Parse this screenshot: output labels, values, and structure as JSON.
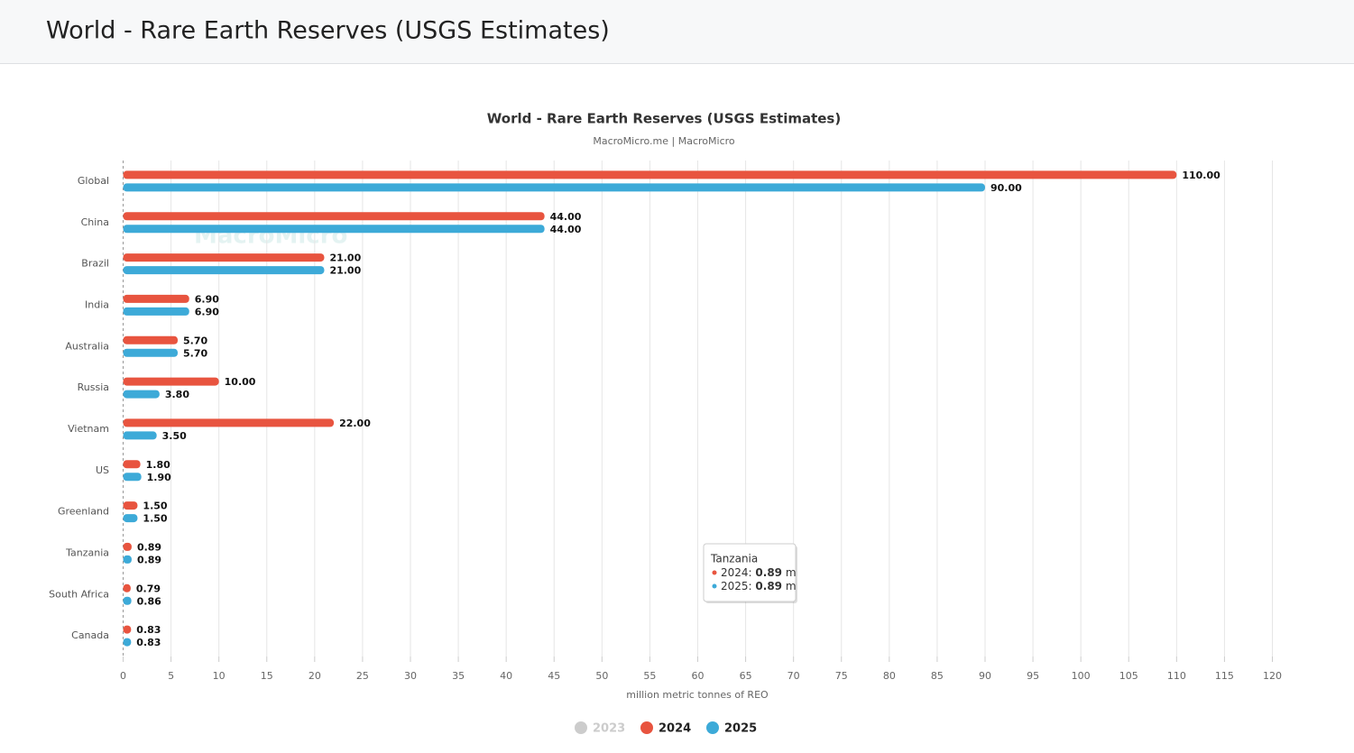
{
  "header": {
    "title": "World - Rare Earth Reserves (USGS Estimates)"
  },
  "chart_data": {
    "type": "bar",
    "orientation": "horizontal",
    "title": "World - Rare Earth Reserves (USGS Estimates)",
    "subtitle": "MacroMicro.me | MacroMicro",
    "watermark": "MacroMicro",
    "x_label": "million metric tonnes of REO",
    "categories": [
      "Global",
      "China",
      "Brazil",
      "India",
      "Australia",
      "Russia",
      "Vietnam",
      "US",
      "Greenland",
      "Tanzania",
      "South Africa",
      "Canada"
    ],
    "series": [
      {
        "name": "2023",
        "color": "#cccccc",
        "visible": false,
        "values": [
          null,
          null,
          null,
          null,
          null,
          null,
          null,
          null,
          null,
          null,
          null,
          null
        ]
      },
      {
        "name": "2024",
        "color": "#e8543f",
        "visible": true,
        "values": [
          110,
          44,
          21,
          6.9,
          5.7,
          10,
          22,
          1.8,
          1.5,
          0.89,
          0.79,
          0.83
        ],
        "value_labels": [
          "110.00",
          "44.00",
          "21.00",
          "6.90",
          "5.70",
          "10.00",
          "22.00",
          "1.80",
          "1.50",
          "0.89",
          "0.79",
          "0.83"
        ]
      },
      {
        "name": "2025",
        "color": "#3daad8",
        "visible": true,
        "values": [
          90,
          44,
          21,
          6.9,
          5.7,
          3.8,
          3.5,
          1.9,
          1.5,
          0.89,
          0.86,
          0.83
        ],
        "value_labels": [
          "90.00",
          "44.00",
          "21.00",
          "6.90",
          "5.70",
          "3.80",
          "3.50",
          "1.90",
          "1.50",
          "0.89",
          "0.86",
          "0.83"
        ]
      }
    ],
    "xlim": [
      0,
      120
    ],
    "xticks": [
      0,
      5,
      10,
      15,
      20,
      25,
      30,
      35,
      40,
      45,
      50,
      55,
      60,
      65,
      70,
      75,
      80,
      85,
      90,
      95,
      100,
      105,
      110,
      115,
      120
    ],
    "grid": true,
    "legend": "bottom",
    "tooltip": {
      "title": "Tanzania",
      "items": [
        {
          "series": 1,
          "label": "2024:",
          "value": 0.89,
          "unit": "m"
        },
        {
          "series": 2,
          "label": "2025:",
          "value": 0.89,
          "unit": "m"
        }
      ]
    }
  }
}
